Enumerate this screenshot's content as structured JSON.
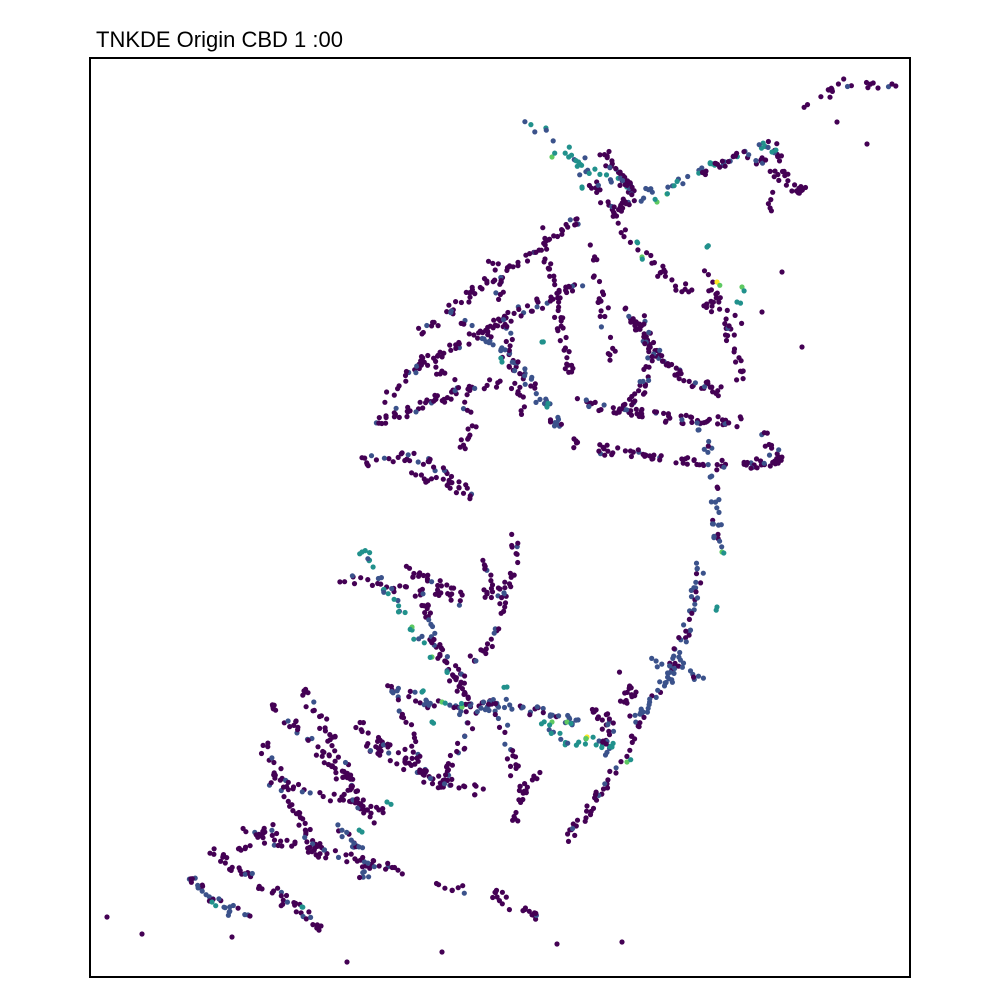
{
  "title": "TNKDE Origin CBD 1 :00",
  "palette": {
    "low": "#440154",
    "low_mid": "#3b528b",
    "mid": "#21918c",
    "high_mid": "#5ec962",
    "high": "#fde725"
  }
}
